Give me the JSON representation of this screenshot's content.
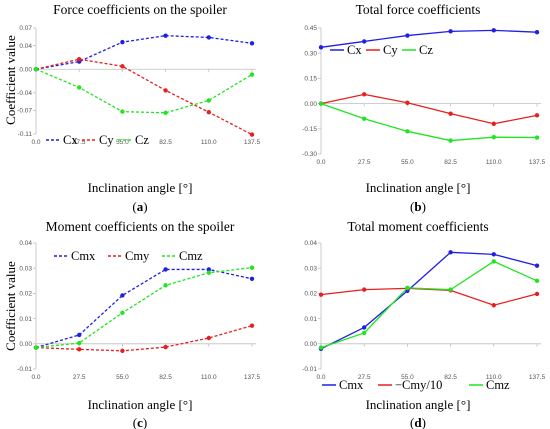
{
  "chart_data": [
    {
      "type": "line",
      "title": "Force coefficients on the spoiler",
      "xlabel": "Inclination angle [°]",
      "ylabel": "Coefficient value",
      "caption": "a",
      "x": [
        0.0,
        27.5,
        55.0,
        82.5,
        110.0,
        137.5
      ],
      "x_tick_labels": [
        "0.0",
        "27.5",
        "55.0",
        "82.5",
        "110.0",
        "137.5"
      ],
      "ylim": [
        -0.11,
        0.07
      ],
      "y_ticks": [
        -0.11,
        -0.07,
        -0.04,
        0.0,
        0.04,
        0.07
      ],
      "y_tick_labels": [
        "-0.11",
        "-0.07",
        "-0.04",
        "0.00",
        "0.04",
        "0.07"
      ],
      "grid": false,
      "legend_position": "bottom-left",
      "line_style": "dashed",
      "series": [
        {
          "name": "Cx",
          "color": "#1f1fe6",
          "values": [
            0.0,
            0.013,
            0.046,
            0.057,
            0.054,
            0.044
          ]
        },
        {
          "name": "Cy",
          "color": "#e61f1f",
          "values": [
            0.0,
            0.017,
            0.005,
            -0.036,
            -0.073,
            -0.111
          ]
        },
        {
          "name": "Cz",
          "color": "#1fe61f",
          "values": [
            0.0,
            -0.031,
            -0.072,
            -0.074,
            -0.053,
            -0.009
          ]
        }
      ]
    },
    {
      "type": "line",
      "title": "Total force coefficients",
      "xlabel": "Inclination angle [°]",
      "ylabel": "",
      "caption": "b",
      "x": [
        0.0,
        27.5,
        55.0,
        82.5,
        110.0,
        137.5
      ],
      "x_tick_labels": [
        "0.0",
        "27.5",
        "55.0",
        "82.5",
        "110.0",
        "137.5"
      ],
      "ylim": [
        -0.3,
        0.45
      ],
      "y_ticks": [
        -0.3,
        -0.15,
        0.0,
        0.15,
        0.3,
        0.45
      ],
      "y_tick_labels": [
        "-0.30",
        "-0.15",
        "0.00",
        "0.15",
        "0.30",
        "0.45"
      ],
      "grid": false,
      "legend_position": "top-left",
      "line_style": "solid",
      "series": [
        {
          "name": "Cx",
          "color": "#1f1fe6",
          "values": [
            0.335,
            0.37,
            0.405,
            0.43,
            0.436,
            0.425
          ]
        },
        {
          "name": "Cy",
          "color": "#e61f1f",
          "values": [
            0.0,
            0.055,
            0.005,
            -0.06,
            -0.12,
            -0.07
          ]
        },
        {
          "name": "Cz",
          "color": "#1fe61f",
          "values": [
            0.0,
            -0.09,
            -0.165,
            -0.22,
            -0.2,
            -0.202
          ]
        }
      ]
    },
    {
      "type": "line",
      "title": "Moment coefficients on the spoiler",
      "xlabel": "Inclination angle [°]",
      "ylabel": "Coefficient value",
      "caption": "c",
      "x": [
        0.0,
        27.5,
        55.0,
        82.5,
        110.0,
        137.5
      ],
      "x_tick_labels": [
        "0.0",
        "27.5",
        "55.0",
        "82.5",
        "110.0",
        "137.5"
      ],
      "ylim": [
        -0.01,
        0.04
      ],
      "y_ticks": [
        -0.01,
        0.0,
        0.01,
        0.02,
        0.03,
        0.04
      ],
      "y_tick_labels": [
        "-0.01",
        "0.00",
        "0.01",
        "0.02",
        "0.03",
        "0.04"
      ],
      "grid": false,
      "legend_position": "top",
      "line_style": "dashed",
      "series": [
        {
          "name": "Cmx",
          "color": "#1f1fe6",
          "values": [
            -0.0015,
            0.0035,
            0.0192,
            0.0295,
            0.0295,
            0.0258
          ]
        },
        {
          "name": "Cmy",
          "color": "#e61f1f",
          "values": [
            -0.0015,
            -0.0022,
            -0.0028,
            -0.0013,
            0.0023,
            0.0072
          ]
        },
        {
          "name": "Cmz",
          "color": "#1fe61f",
          "values": [
            -0.0015,
            0.0003,
            0.0123,
            0.0232,
            0.0282,
            0.0302
          ]
        }
      ]
    },
    {
      "type": "line",
      "title": "Total moment coefficients",
      "xlabel": "Inclination angle [°]",
      "ylabel": "",
      "caption": "d",
      "x": [
        0.0,
        27.5,
        55.0,
        82.5,
        110.0,
        137.5
      ],
      "x_tick_labels": [
        "0.0",
        "27.5",
        "55.0",
        "82.5",
        "110.0",
        "137.5"
      ],
      "ylim": [
        -0.01,
        0.04
      ],
      "y_ticks": [
        -0.01,
        0.0,
        0.01,
        0.02,
        0.03,
        0.04
      ],
      "y_tick_labels": [
        "-0.01",
        "0.00",
        "0.01",
        "0.02",
        "0.03",
        "0.04"
      ],
      "grid": false,
      "legend_position": "bottom",
      "line_style": "solid",
      "series": [
        {
          "name": "Cmx",
          "color": "#1f1fe6",
          "values": [
            -0.002,
            0.0065,
            0.021,
            0.0363,
            0.0355,
            0.031
          ]
        },
        {
          "name": "−Cmy/10",
          "color": "#e61f1f",
          "values": [
            0.0195,
            0.0215,
            0.022,
            0.0212,
            0.0153,
            0.0198
          ]
        },
        {
          "name": "Cmz",
          "color": "#1fe61f",
          "values": [
            -0.0015,
            0.0043,
            0.0222,
            0.0215,
            0.0327,
            0.025
          ]
        }
      ]
    }
  ]
}
